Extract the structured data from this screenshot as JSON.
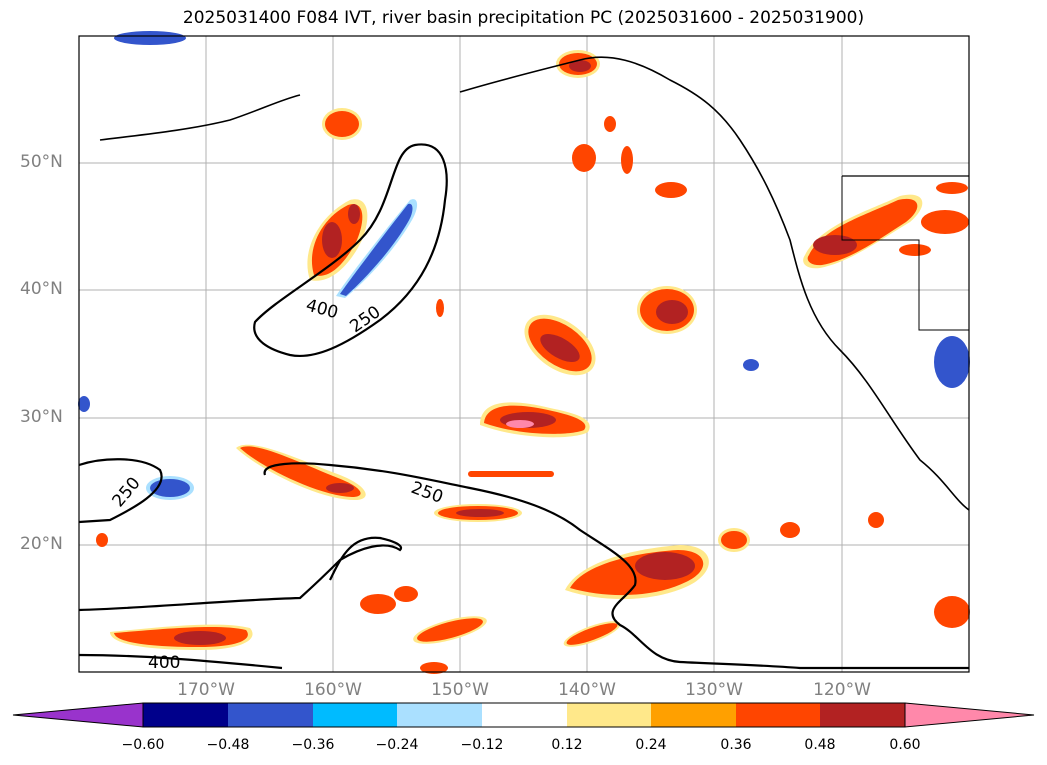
{
  "title": "2025031400 F084 IVT, river basin precipitation PC (2025031600 - 2025031900)",
  "lat_labels": [
    "50°N",
    "40°N",
    "30°N",
    "20°N"
  ],
  "lon_labels": [
    "170°W",
    "160°W",
    "150°W",
    "140°W",
    "130°W",
    "120°W"
  ],
  "contour_labels": [
    "400",
    "250",
    "250",
    "250",
    "400"
  ],
  "colorbar": {
    "ticks": [
      "−0.60",
      "−0.48",
      "−0.36",
      "−0.24",
      "−0.12",
      "0.12",
      "0.24",
      "0.36",
      "0.48",
      "0.60"
    ],
    "colors": [
      "#9933cc",
      "#00008b",
      "#3355cc",
      "#00bbff",
      "#aae0ff",
      "#ffffff",
      "#ffe88a",
      "#ffa000",
      "#ff4500",
      "#b22222",
      "#ff88aa"
    ]
  },
  "colors": {
    "positive_weak": "#ffe88a",
    "positive_mid": "#ffa000",
    "positive_strong": "#ff4500",
    "positive_high": "#b22222",
    "positive_max": "#ff88aa",
    "negative_weak": "#aae0ff",
    "negative_mid": "#00bbff",
    "negative_strong": "#3355cc",
    "negative_high": "#00008b",
    "grid": "#b0b0b0",
    "label_gray": "#808080"
  }
}
